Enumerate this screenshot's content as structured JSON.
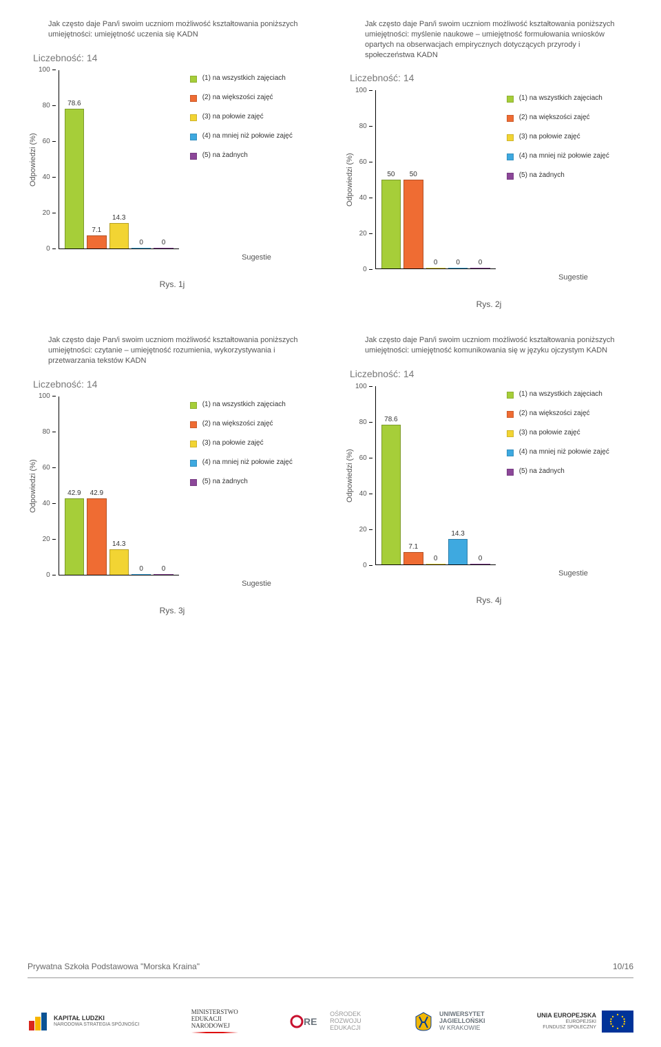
{
  "page": {
    "school_name": "Prywatna Szkoła Podstawowa \"Morska Kraina\"",
    "page_number": "10/16"
  },
  "common": {
    "count_prefix": "Liczebność:",
    "ylabel": "Odpowiedzi (%)",
    "xlabel": "Sugestie",
    "ylim": [
      0,
      100
    ],
    "ytick_step": 20,
    "yticks": [
      "100",
      "80",
      "60",
      "40",
      "20",
      "0"
    ],
    "legend": [
      {
        "label": "(1) na wszystkich zajęciach",
        "color": "#a6ce39"
      },
      {
        "label": "(2) na większości zajęć",
        "color": "#ef6c33"
      },
      {
        "label": "(3) na połowie zajęć",
        "color": "#f2d433"
      },
      {
        "label": "(4) na mniej niż połowie zajęć",
        "color": "#3ea9e0"
      },
      {
        "label": "(5) na żadnych",
        "color": "#8c4799"
      }
    ],
    "bar_colors": [
      "#a6ce39",
      "#ef6c33",
      "#f2d433",
      "#3ea9e0",
      "#8c4799"
    ]
  },
  "charts": [
    {
      "title": "Jak często daje Pan/i swoim uczniom możliwość kształtowania poniższych umiejętności: umiejętność uczenia się KADN",
      "count": "14",
      "values": [
        78.6,
        7.1,
        14.3,
        0,
        0
      ],
      "value_labels": [
        "78.6",
        "7.1",
        "14.3",
        "0",
        "0"
      ],
      "caption": "Rys. 1j"
    },
    {
      "title": "Jak często daje Pan/i swoim uczniom możliwość kształtowania poniższych umiejętności: myślenie naukowe – umiejętność formułowania wniosków opartych na obserwacjach empirycznych dotyczących przyrody i społeczeństwa KADN",
      "count": "14",
      "values": [
        50,
        50,
        0,
        0,
        0
      ],
      "value_labels": [
        "50",
        "50",
        "0",
        "0",
        "0"
      ],
      "caption": "Rys. 2j"
    },
    {
      "title": "Jak często daje Pan/i swoim uczniom możliwość kształtowania poniższych umiejętności: czytanie – umiejętność rozumienia, wykorzystywania i przetwarzania tekstów KADN",
      "count": "14",
      "values": [
        42.9,
        42.9,
        14.3,
        0,
        0
      ],
      "value_labels": [
        "42.9",
        "42.9",
        "14.3",
        "0",
        "0"
      ],
      "caption": "Rys. 3j"
    },
    {
      "title": "Jak często daje Pan/i swoim uczniom możliwość kształtowania poniższych umiejętności: umiejętność komunikowania się w języku ojczystym KADN",
      "count": "14",
      "values": [
        78.6,
        7.1,
        0,
        14.3,
        0
      ],
      "value_labels": [
        "78.6",
        "7.1",
        "0",
        "14.3",
        "0"
      ],
      "caption": "Rys. 4j"
    }
  ],
  "logos": {
    "kapital": {
      "line1": "KAPITAŁ LUDZKI",
      "line2": "NARODOWA STRATEGIA SPÓJNOŚCI",
      "color1": "#d9261c",
      "color2": "#f7b500",
      "color3": "#0b5394"
    },
    "ministerstwo": {
      "line1": "MINISTERSTWO",
      "line2": "EDUKACJI",
      "line3": "NARODOWEJ"
    },
    "ore": {
      "brand": "ORE",
      "line1": "OŚRODEK",
      "line2": "ROZWOJU",
      "line3": "EDUKACJI",
      "color": "#c8102e"
    },
    "uj": {
      "line1": "UNIWERSYTET",
      "line2": "JAGIELLOŃSKI",
      "line3": "W KRAKOWIE",
      "bg": "#f2b705",
      "fg": "#0b3d91"
    },
    "eu": {
      "line1": "UNIA EUROPEJSKA",
      "line2": "EUROPEJSKI",
      "line3": "FUNDUSZ SPOŁECZNY",
      "flag_bg": "#003399",
      "flag_star": "#ffcc00"
    }
  }
}
